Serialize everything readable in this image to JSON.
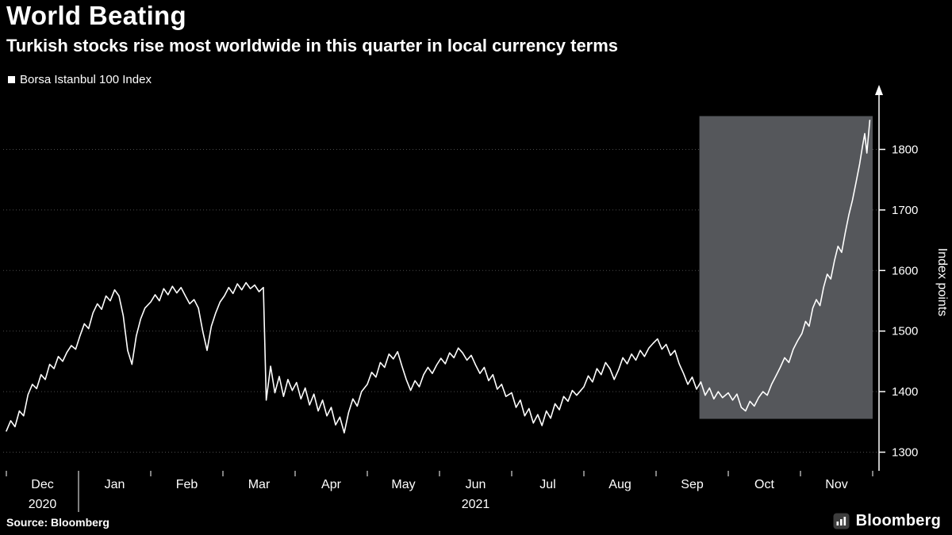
{
  "header": {
    "title": "World Beating",
    "subtitle": "Turkish stocks rise most worldwide in this quarter in local currency terms"
  },
  "legend": {
    "label": "Borsa Istanbul 100 Index",
    "marker": "square-marker"
  },
  "footer": {
    "source": "Source: Bloomberg",
    "brand": "Bloomberg"
  },
  "colors": {
    "background": "#000000",
    "line": "#ffffff",
    "grid": "#4b4b4b",
    "highlight": "#55575b",
    "text": "#ffffff",
    "brand_icon_bg": "#3d3d3d"
  },
  "chart_data": {
    "type": "line",
    "title": "World Beating",
    "subtitle": "Turkish stocks rise most worldwide in this quarter in local currency terms",
    "grid": "dotted-horizontal",
    "x_axis": {
      "unit": "months since 2020-12-01",
      "range": [
        0,
        12
      ],
      "month_labels": [
        "Dec",
        "Jan",
        "Feb",
        "Mar",
        "Apr",
        "May",
        "Jun",
        "Jul",
        "Aug",
        "Sep",
        "Oct",
        "Nov"
      ],
      "year_labels": [
        {
          "label": "2020",
          "t": 0.5
        },
        {
          "label": "2021",
          "t": 6.5
        }
      ]
    },
    "y_axis": {
      "label": "Index points",
      "side": "right",
      "ticks": [
        1300,
        1400,
        1500,
        1600,
        1700,
        1800
      ],
      "range": [
        1270,
        1890
      ]
    },
    "highlight_region": {
      "t_start": 9.6,
      "t_end": 12,
      "v_min": 1355,
      "v_max": 1855
    },
    "series": [
      {
        "name": "Borsa Istanbul 100 Index",
        "points": [
          [
            0.0,
            1335
          ],
          [
            0.06,
            1352
          ],
          [
            0.12,
            1342
          ],
          [
            0.18,
            1368
          ],
          [
            0.24,
            1360
          ],
          [
            0.3,
            1395
          ],
          [
            0.36,
            1412
          ],
          [
            0.42,
            1405
          ],
          [
            0.48,
            1428
          ],
          [
            0.54,
            1420
          ],
          [
            0.6,
            1445
          ],
          [
            0.66,
            1438
          ],
          [
            0.72,
            1458
          ],
          [
            0.78,
            1450
          ],
          [
            0.84,
            1465
          ],
          [
            0.9,
            1476
          ],
          [
            0.96,
            1470
          ],
          [
            1.02,
            1492
          ],
          [
            1.08,
            1512
          ],
          [
            1.14,
            1504
          ],
          [
            1.2,
            1530
          ],
          [
            1.26,
            1545
          ],
          [
            1.32,
            1536
          ],
          [
            1.38,
            1558
          ],
          [
            1.44,
            1550
          ],
          [
            1.5,
            1568
          ],
          [
            1.56,
            1558
          ],
          [
            1.62,
            1525
          ],
          [
            1.68,
            1468
          ],
          [
            1.74,
            1445
          ],
          [
            1.8,
            1492
          ],
          [
            1.86,
            1520
          ],
          [
            1.92,
            1538
          ],
          [
            2.0,
            1548
          ],
          [
            2.06,
            1560
          ],
          [
            2.12,
            1550
          ],
          [
            2.18,
            1570
          ],
          [
            2.24,
            1560
          ],
          [
            2.3,
            1574
          ],
          [
            2.36,
            1563
          ],
          [
            2.42,
            1572
          ],
          [
            2.48,
            1558
          ],
          [
            2.54,
            1545
          ],
          [
            2.6,
            1552
          ],
          [
            2.66,
            1538
          ],
          [
            2.72,
            1500
          ],
          [
            2.78,
            1468
          ],
          [
            2.84,
            1508
          ],
          [
            2.9,
            1530
          ],
          [
            2.96,
            1548
          ],
          [
            3.02,
            1558
          ],
          [
            3.08,
            1572
          ],
          [
            3.14,
            1562
          ],
          [
            3.2,
            1578
          ],
          [
            3.26,
            1568
          ],
          [
            3.32,
            1580
          ],
          [
            3.38,
            1570
          ],
          [
            3.44,
            1576
          ],
          [
            3.5,
            1565
          ],
          [
            3.56,
            1572
          ],
          [
            3.6,
            1386
          ],
          [
            3.66,
            1442
          ],
          [
            3.72,
            1398
          ],
          [
            3.78,
            1425
          ],
          [
            3.84,
            1392
          ],
          [
            3.9,
            1420
          ],
          [
            3.96,
            1402
          ],
          [
            4.02,
            1415
          ],
          [
            4.08,
            1388
          ],
          [
            4.14,
            1406
          ],
          [
            4.2,
            1378
          ],
          [
            4.26,
            1396
          ],
          [
            4.32,
            1368
          ],
          [
            4.38,
            1386
          ],
          [
            4.44,
            1360
          ],
          [
            4.5,
            1374
          ],
          [
            4.56,
            1345
          ],
          [
            4.62,
            1358
          ],
          [
            4.68,
            1332
          ],
          [
            4.74,
            1365
          ],
          [
            4.8,
            1388
          ],
          [
            4.86,
            1376
          ],
          [
            4.92,
            1400
          ],
          [
            5.0,
            1412
          ],
          [
            5.06,
            1432
          ],
          [
            5.12,
            1424
          ],
          [
            5.18,
            1448
          ],
          [
            5.24,
            1440
          ],
          [
            5.3,
            1462
          ],
          [
            5.36,
            1454
          ],
          [
            5.42,
            1466
          ],
          [
            5.48,
            1442
          ],
          [
            5.54,
            1420
          ],
          [
            5.6,
            1402
          ],
          [
            5.66,
            1418
          ],
          [
            5.72,
            1408
          ],
          [
            5.78,
            1428
          ],
          [
            5.84,
            1440
          ],
          [
            5.9,
            1430
          ],
          [
            5.96,
            1444
          ],
          [
            6.02,
            1455
          ],
          [
            6.08,
            1446
          ],
          [
            6.14,
            1464
          ],
          [
            6.2,
            1456
          ],
          [
            6.26,
            1472
          ],
          [
            6.32,
            1464
          ],
          [
            6.38,
            1452
          ],
          [
            6.44,
            1460
          ],
          [
            6.5,
            1444
          ],
          [
            6.56,
            1430
          ],
          [
            6.62,
            1440
          ],
          [
            6.68,
            1418
          ],
          [
            6.74,
            1428
          ],
          [
            6.8,
            1404
          ],
          [
            6.86,
            1412
          ],
          [
            6.92,
            1392
          ],
          [
            7.0,
            1398
          ],
          [
            7.06,
            1374
          ],
          [
            7.12,
            1386
          ],
          [
            7.18,
            1360
          ],
          [
            7.24,
            1372
          ],
          [
            7.3,
            1348
          ],
          [
            7.36,
            1362
          ],
          [
            7.42,
            1344
          ],
          [
            7.48,
            1368
          ],
          [
            7.54,
            1356
          ],
          [
            7.6,
            1380
          ],
          [
            7.66,
            1370
          ],
          [
            7.72,
            1392
          ],
          [
            7.78,
            1384
          ],
          [
            7.84,
            1402
          ],
          [
            7.9,
            1394
          ],
          [
            8.0,
            1408
          ],
          [
            8.06,
            1426
          ],
          [
            8.12,
            1416
          ],
          [
            8.18,
            1438
          ],
          [
            8.24,
            1428
          ],
          [
            8.3,
            1448
          ],
          [
            8.36,
            1438
          ],
          [
            8.42,
            1420
          ],
          [
            8.48,
            1436
          ],
          [
            8.54,
            1456
          ],
          [
            8.6,
            1446
          ],
          [
            8.66,
            1462
          ],
          [
            8.72,
            1452
          ],
          [
            8.78,
            1468
          ],
          [
            8.84,
            1458
          ],
          [
            8.9,
            1472
          ],
          [
            8.96,
            1480
          ],
          [
            9.02,
            1487
          ],
          [
            9.08,
            1470
          ],
          [
            9.14,
            1478
          ],
          [
            9.2,
            1460
          ],
          [
            9.26,
            1468
          ],
          [
            9.32,
            1446
          ],
          [
            9.38,
            1430
          ],
          [
            9.44,
            1412
          ],
          [
            9.5,
            1424
          ],
          [
            9.56,
            1404
          ],
          [
            9.62,
            1416
          ],
          [
            9.68,
            1394
          ],
          [
            9.74,
            1406
          ],
          [
            9.8,
            1388
          ],
          [
            9.86,
            1400
          ],
          [
            9.92,
            1390
          ],
          [
            10.0,
            1398
          ],
          [
            10.06,
            1386
          ],
          [
            10.12,
            1396
          ],
          [
            10.18,
            1374
          ],
          [
            10.24,
            1368
          ],
          [
            10.3,
            1384
          ],
          [
            10.36,
            1376
          ],
          [
            10.42,
            1390
          ],
          [
            10.48,
            1400
          ],
          [
            10.54,
            1394
          ],
          [
            10.6,
            1412
          ],
          [
            10.66,
            1426
          ],
          [
            10.72,
            1440
          ],
          [
            10.78,
            1456
          ],
          [
            10.84,
            1448
          ],
          [
            10.9,
            1470
          ],
          [
            10.96,
            1484
          ],
          [
            11.02,
            1496
          ],
          [
            11.07,
            1516
          ],
          [
            11.12,
            1508
          ],
          [
            11.17,
            1538
          ],
          [
            11.22,
            1552
          ],
          [
            11.27,
            1542
          ],
          [
            11.32,
            1572
          ],
          [
            11.37,
            1594
          ],
          [
            11.42,
            1586
          ],
          [
            11.47,
            1616
          ],
          [
            11.52,
            1640
          ],
          [
            11.57,
            1630
          ],
          [
            11.62,
            1662
          ],
          [
            11.67,
            1692
          ],
          [
            11.72,
            1716
          ],
          [
            11.77,
            1746
          ],
          [
            11.82,
            1776
          ],
          [
            11.86,
            1806
          ],
          [
            11.89,
            1826
          ],
          [
            11.92,
            1794
          ],
          [
            11.96,
            1848
          ]
        ]
      }
    ]
  }
}
